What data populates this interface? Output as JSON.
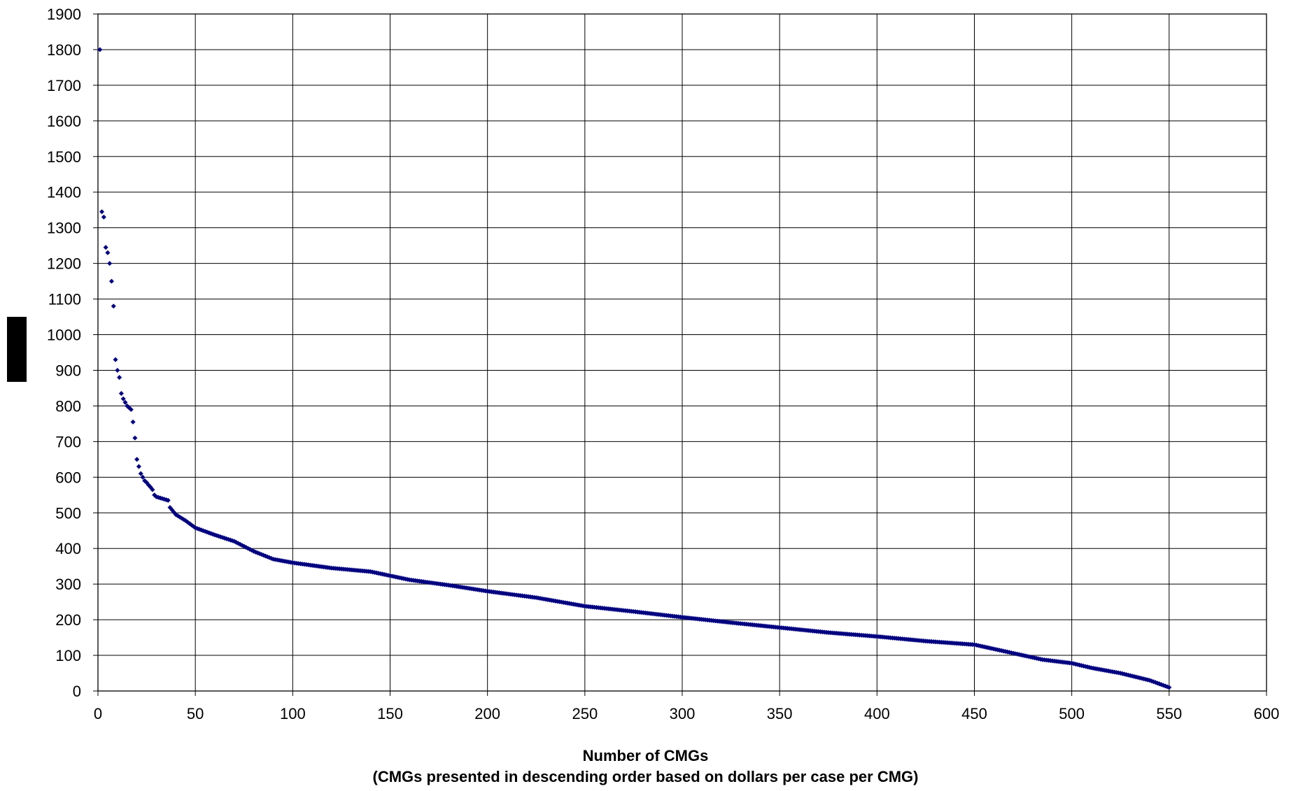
{
  "chart_data": {
    "type": "scatter",
    "title": "",
    "xlabel": "Number of CMGs",
    "xlabel_sub": "(CMGs presented in descending order based on dollars per case per CMG)",
    "ylabel": "",
    "xlim": [
      0,
      600
    ],
    "ylim": [
      0,
      1900
    ],
    "x_ticks": [
      "0",
      "50",
      "100",
      "150",
      "200",
      "250",
      "300",
      "350",
      "400",
      "450",
      "500",
      "550",
      "600"
    ],
    "y_ticks": [
      "0",
      "100",
      "200",
      "300",
      "400",
      "500",
      "600",
      "700",
      "800",
      "900",
      "1000",
      "1100",
      "1200",
      "1300",
      "1400",
      "1500",
      "1600",
      "1700",
      "1800",
      "1900"
    ],
    "grid": true,
    "legend": "none",
    "marker_color": "#00007f",
    "key_points": [
      [
        1,
        1800
      ],
      [
        2,
        1345
      ],
      [
        3,
        1330
      ],
      [
        4,
        1245
      ],
      [
        5,
        1230
      ],
      [
        6,
        1200
      ],
      [
        7,
        1150
      ],
      [
        8,
        1080
      ],
      [
        9,
        930
      ],
      [
        10,
        900
      ],
      [
        11,
        880
      ],
      [
        12,
        835
      ],
      [
        13,
        820
      ],
      [
        14,
        810
      ],
      [
        15,
        800
      ],
      [
        16,
        795
      ],
      [
        17,
        790
      ],
      [
        18,
        755
      ],
      [
        19,
        710
      ],
      [
        20,
        650
      ],
      [
        21,
        630
      ],
      [
        22,
        610
      ],
      [
        23,
        600
      ],
      [
        24,
        590
      ],
      [
        25,
        585
      ],
      [
        26,
        578
      ],
      [
        27,
        572
      ],
      [
        28,
        565
      ],
      [
        29,
        550
      ],
      [
        30,
        545
      ],
      [
        33,
        540
      ],
      [
        36,
        535
      ],
      [
        37,
        515
      ],
      [
        40,
        495
      ],
      [
        45,
        478
      ],
      [
        50,
        458
      ],
      [
        60,
        438
      ],
      [
        70,
        420
      ],
      [
        80,
        392
      ],
      [
        90,
        370
      ],
      [
        100,
        360
      ],
      [
        120,
        345
      ],
      [
        140,
        335
      ],
      [
        160,
        312
      ],
      [
        180,
        297
      ],
      [
        200,
        280
      ],
      [
        225,
        262
      ],
      [
        250,
        238
      ],
      [
        275,
        223
      ],
      [
        300,
        207
      ],
      [
        325,
        192
      ],
      [
        350,
        178
      ],
      [
        375,
        164
      ],
      [
        400,
        153
      ],
      [
        425,
        140
      ],
      [
        450,
        130
      ],
      [
        460,
        118
      ],
      [
        475,
        100
      ],
      [
        485,
        88
      ],
      [
        500,
        78
      ],
      [
        510,
        65
      ],
      [
        525,
        50
      ],
      [
        540,
        30
      ],
      [
        550,
        10
      ]
    ]
  }
}
